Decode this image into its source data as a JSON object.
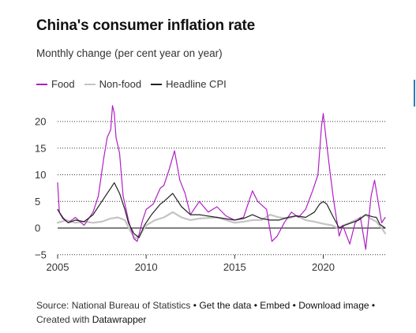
{
  "title": "China's consumer inflation rate",
  "subtitle": "Monthly change (per cent year on year)",
  "footer": {
    "source": "Source: National Bureau of Statistics",
    "get_data": "Get the data",
    "embed": "Embed",
    "download": "Download image",
    "created_with": "Created with",
    "datawrapper": "Datawrapper",
    "separator": "•"
  },
  "colors": {
    "food": "#b01fc4",
    "nonfood": "#c4c4c4",
    "headline": "#222222",
    "grid": "#333333"
  },
  "chart_data": {
    "type": "line",
    "title": "China's consumer inflation rate",
    "subtitle": "Monthly change (per cent year on year)",
    "xlabel": "",
    "ylabel": "",
    "xlim": [
      2005,
      2023.5
    ],
    "ylim": [
      -5,
      22
    ],
    "x_ticks": [
      "2005",
      "2010",
      "2015",
      "2020"
    ],
    "y_ticks": [
      20,
      15,
      10,
      5,
      0,
      -5
    ],
    "grid": "horizontal dotted",
    "legend_position": "top-left",
    "series": [
      {
        "name": "Food",
        "x": [
          2005.0,
          2005.1,
          2005.3,
          2005.6,
          2006.0,
          2006.5,
          2007.0,
          2007.3,
          2007.6,
          2007.8,
          2008.0,
          2008.1,
          2008.2,
          2008.3,
          2008.5,
          2008.7,
          2009.0,
          2009.3,
          2009.5,
          2009.8,
          2010.0,
          2010.4,
          2010.8,
          2011.0,
          2011.3,
          2011.6,
          2011.9,
          2012.2,
          2012.5,
          2013.0,
          2013.5,
          2014.0,
          2014.5,
          2015.0,
          2015.5,
          2016.0,
          2016.3,
          2016.8,
          2017.1,
          2017.4,
          2017.8,
          2018.2,
          2018.6,
          2019.0,
          2019.4,
          2019.7,
          2019.9,
          2020.0,
          2020.15,
          2020.4,
          2020.6,
          2020.9,
          2021.1,
          2021.5,
          2021.8,
          2022.1,
          2022.4,
          2022.7,
          2022.9,
          2023.1,
          2023.3,
          2023.5
        ],
        "values": [
          8.5,
          3.0,
          2.0,
          1.0,
          2.0,
          0.5,
          3.0,
          6.0,
          13.0,
          17.0,
          18.5,
          23.0,
          21.5,
          17.0,
          14.0,
          6.0,
          1.5,
          -2.0,
          -2.5,
          1.5,
          3.5,
          4.5,
          7.5,
          8.0,
          11.0,
          14.5,
          9.0,
          6.5,
          2.5,
          5.0,
          3.0,
          4.0,
          2.3,
          1.5,
          2.0,
          7.0,
          5.0,
          3.5,
          -2.5,
          -1.5,
          1.0,
          3.0,
          2.0,
          3.5,
          7.0,
          10.0,
          19.0,
          21.5,
          17.0,
          10.0,
          5.0,
          -1.5,
          0.5,
          -3.0,
          1.0,
          2.0,
          -4.0,
          6.0,
          9.0,
          5.0,
          1.0,
          2.0
        ]
      },
      {
        "name": "Non-food",
        "x": [
          2005.0,
          2005.5,
          2006.0,
          2006.5,
          2007.0,
          2007.5,
          2008.0,
          2008.4,
          2008.8,
          2009.1,
          2009.4,
          2009.7,
          2010.0,
          2010.5,
          2011.0,
          2011.5,
          2012.0,
          2012.5,
          2013.0,
          2014.0,
          2015.0,
          2015.5,
          2016.0,
          2016.5,
          2017.0,
          2017.5,
          2018.0,
          2018.5,
          2019.0,
          2019.5,
          2020.0,
          2020.5,
          2020.8,
          2021.0,
          2021.5,
          2022.0,
          2022.4,
          2022.7,
          2023.0,
          2023.3,
          2023.5
        ],
        "values": [
          1.0,
          1.5,
          1.0,
          1.2,
          1.0,
          1.2,
          1.8,
          2.0,
          1.5,
          -0.5,
          -2.0,
          -1.0,
          0.5,
          1.5,
          2.0,
          3.0,
          2.0,
          1.5,
          1.8,
          2.0,
          1.0,
          1.2,
          1.5,
          1.5,
          2.5,
          2.0,
          1.8,
          2.3,
          1.5,
          1.2,
          0.8,
          0.5,
          0.0,
          0.3,
          1.0,
          1.8,
          2.5,
          1.7,
          1.2,
          0.0,
          -1.0
        ]
      },
      {
        "name": "Headline CPI",
        "x": [
          2005.0,
          2005.3,
          2005.6,
          2006.0,
          2006.5,
          2007.0,
          2007.4,
          2007.8,
          2008.0,
          2008.2,
          2008.5,
          2008.8,
          2009.0,
          2009.3,
          2009.6,
          2009.9,
          2010.3,
          2010.8,
          2011.0,
          2011.5,
          2012.0,
          2012.5,
          2013.0,
          2014.0,
          2015.0,
          2015.5,
          2016.0,
          2016.5,
          2017.0,
          2017.5,
          2018.0,
          2018.5,
          2019.0,
          2019.5,
          2019.8,
          2020.0,
          2020.2,
          2020.5,
          2020.9,
          2021.2,
          2021.6,
          2022.0,
          2022.4,
          2022.8,
          2023.0,
          2023.2,
          2023.5
        ],
        "values": [
          3.5,
          1.8,
          1.0,
          1.5,
          1.2,
          2.5,
          4.5,
          6.5,
          7.5,
          8.5,
          6.5,
          3.5,
          1.0,
          -1.0,
          -1.8,
          0.5,
          2.5,
          4.5,
          5.0,
          6.5,
          4.0,
          2.5,
          2.5,
          2.0,
          1.5,
          1.8,
          2.5,
          1.8,
          1.5,
          1.5,
          2.0,
          2.3,
          2.0,
          3.0,
          4.5,
          5.0,
          4.5,
          2.5,
          0.0,
          0.5,
          1.0,
          1.5,
          2.5,
          2.1,
          2.0,
          0.7,
          0.0
        ]
      }
    ]
  }
}
